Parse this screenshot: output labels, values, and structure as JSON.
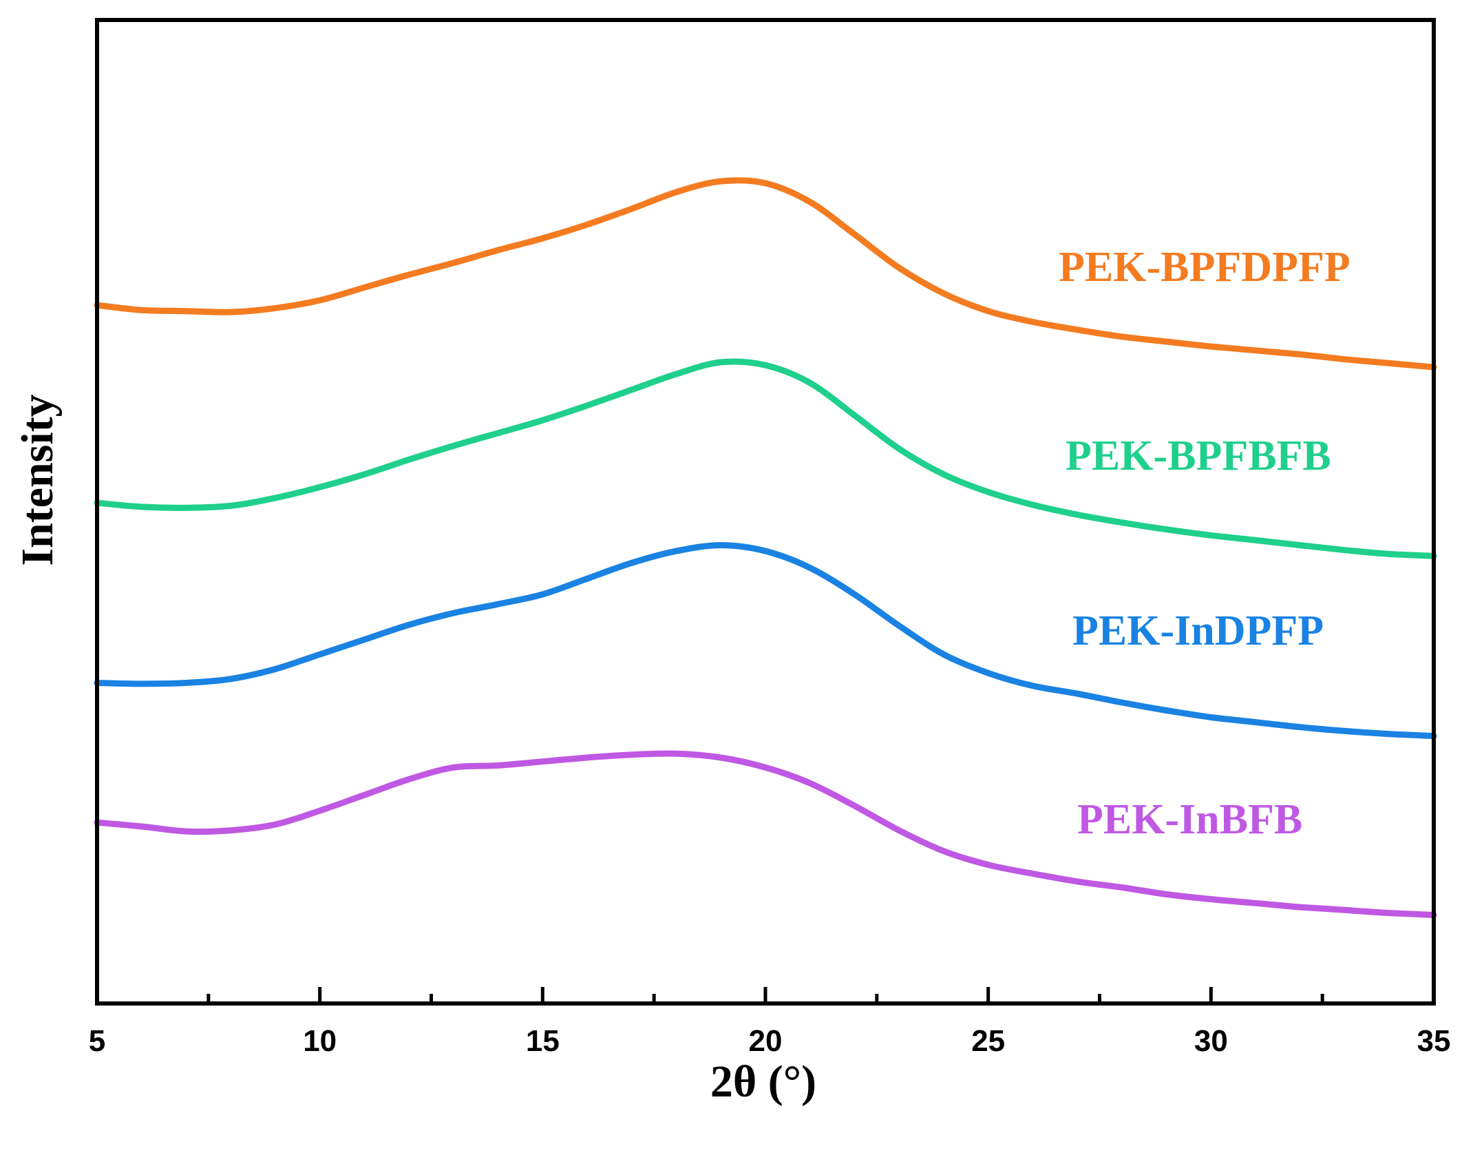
{
  "chart_data": {
    "type": "line",
    "title": "",
    "xlabel": "2θ (°)",
    "ylabel": "Intensity",
    "xlim": [
      5,
      35
    ],
    "ylim": [
      0,
      1000
    ],
    "x_ticks_major": [
      5,
      10,
      15,
      20,
      25,
      30,
      35
    ],
    "x_tick_labels": [
      "5",
      "10",
      "15",
      "20",
      "25",
      "30",
      "35"
    ],
    "x_ticks_minor": [
      7.5,
      12.5,
      17.5,
      22.5,
      27.5,
      32.5
    ],
    "y_ticks_shown": false,
    "grid": false,
    "series": [
      {
        "name": "PEK-BPFDPFP",
        "color": "#f47b20",
        "x": [
          5,
          6,
          7,
          8,
          9,
          10,
          11,
          12,
          13,
          14,
          15,
          16,
          17,
          18,
          19,
          20,
          21,
          22,
          23,
          24,
          25,
          26,
          27,
          28,
          29,
          30,
          31,
          32,
          33,
          34,
          35
        ],
        "y": [
          710,
          705,
          704,
          703,
          707,
          715,
          728,
          741,
          753,
          766,
          778,
          792,
          808,
          825,
          836,
          834,
          815,
          782,
          748,
          722,
          704,
          693,
          685,
          678,
          673,
          668,
          664,
          660,
          655,
          651,
          647
        ]
      },
      {
        "name": "PEK-BPFBFB",
        "color": "#1fcf8c",
        "x": [
          5,
          6,
          7,
          8,
          9,
          10,
          11,
          12,
          13,
          14,
          15,
          16,
          17,
          18,
          19,
          20,
          21,
          22,
          23,
          24,
          25,
          26,
          27,
          28,
          29,
          30,
          31,
          32,
          33,
          34,
          35
        ],
        "y": [
          509,
          505,
          504,
          506,
          514,
          525,
          538,
          553,
          567,
          580,
          593,
          608,
          624,
          640,
          652,
          649,
          631,
          598,
          564,
          538,
          520,
          507,
          497,
          489,
          482,
          476,
          471,
          466,
          461,
          457,
          455
        ]
      },
      {
        "name": "PEK-InDPFP",
        "color": "#1a82e2",
        "x": [
          5,
          6,
          7,
          8,
          9,
          10,
          11,
          12,
          13,
          14,
          15,
          16,
          17,
          18,
          19,
          20,
          21,
          22,
          23,
          24,
          25,
          26,
          27,
          28,
          29,
          30,
          31,
          32,
          33,
          34,
          35
        ],
        "y": [
          326,
          325,
          326,
          330,
          340,
          355,
          370,
          385,
          397,
          406,
          416,
          432,
          448,
          460,
          466,
          460,
          443,
          416,
          384,
          355,
          336,
          323,
          315,
          306,
          298,
          291,
          286,
          281,
          277,
          274,
          272
        ]
      },
      {
        "name": "PEK-InBFB",
        "color": "#bf58e3",
        "x": [
          5,
          6,
          7,
          8,
          9,
          10,
          11,
          12,
          13,
          14,
          15,
          16,
          17,
          18,
          19,
          20,
          21,
          22,
          23,
          24,
          25,
          26,
          27,
          28,
          29,
          30,
          31,
          32,
          33,
          34,
          35
        ],
        "y": [
          184,
          180,
          175,
          176,
          182,
          196,
          212,
          228,
          240,
          242,
          246,
          250,
          253,
          254,
          250,
          240,
          224,
          201,
          176,
          155,
          141,
          132,
          124,
          118,
          111,
          106,
          102,
          98,
          95,
          92,
          90
        ]
      }
    ]
  },
  "labels": {
    "series_1": "PEK-BPFDPFP",
    "series_2": "PEK-BPFBFB",
    "series_3": "PEK-InDPFP",
    "series_4": "PEK-InBFB"
  }
}
